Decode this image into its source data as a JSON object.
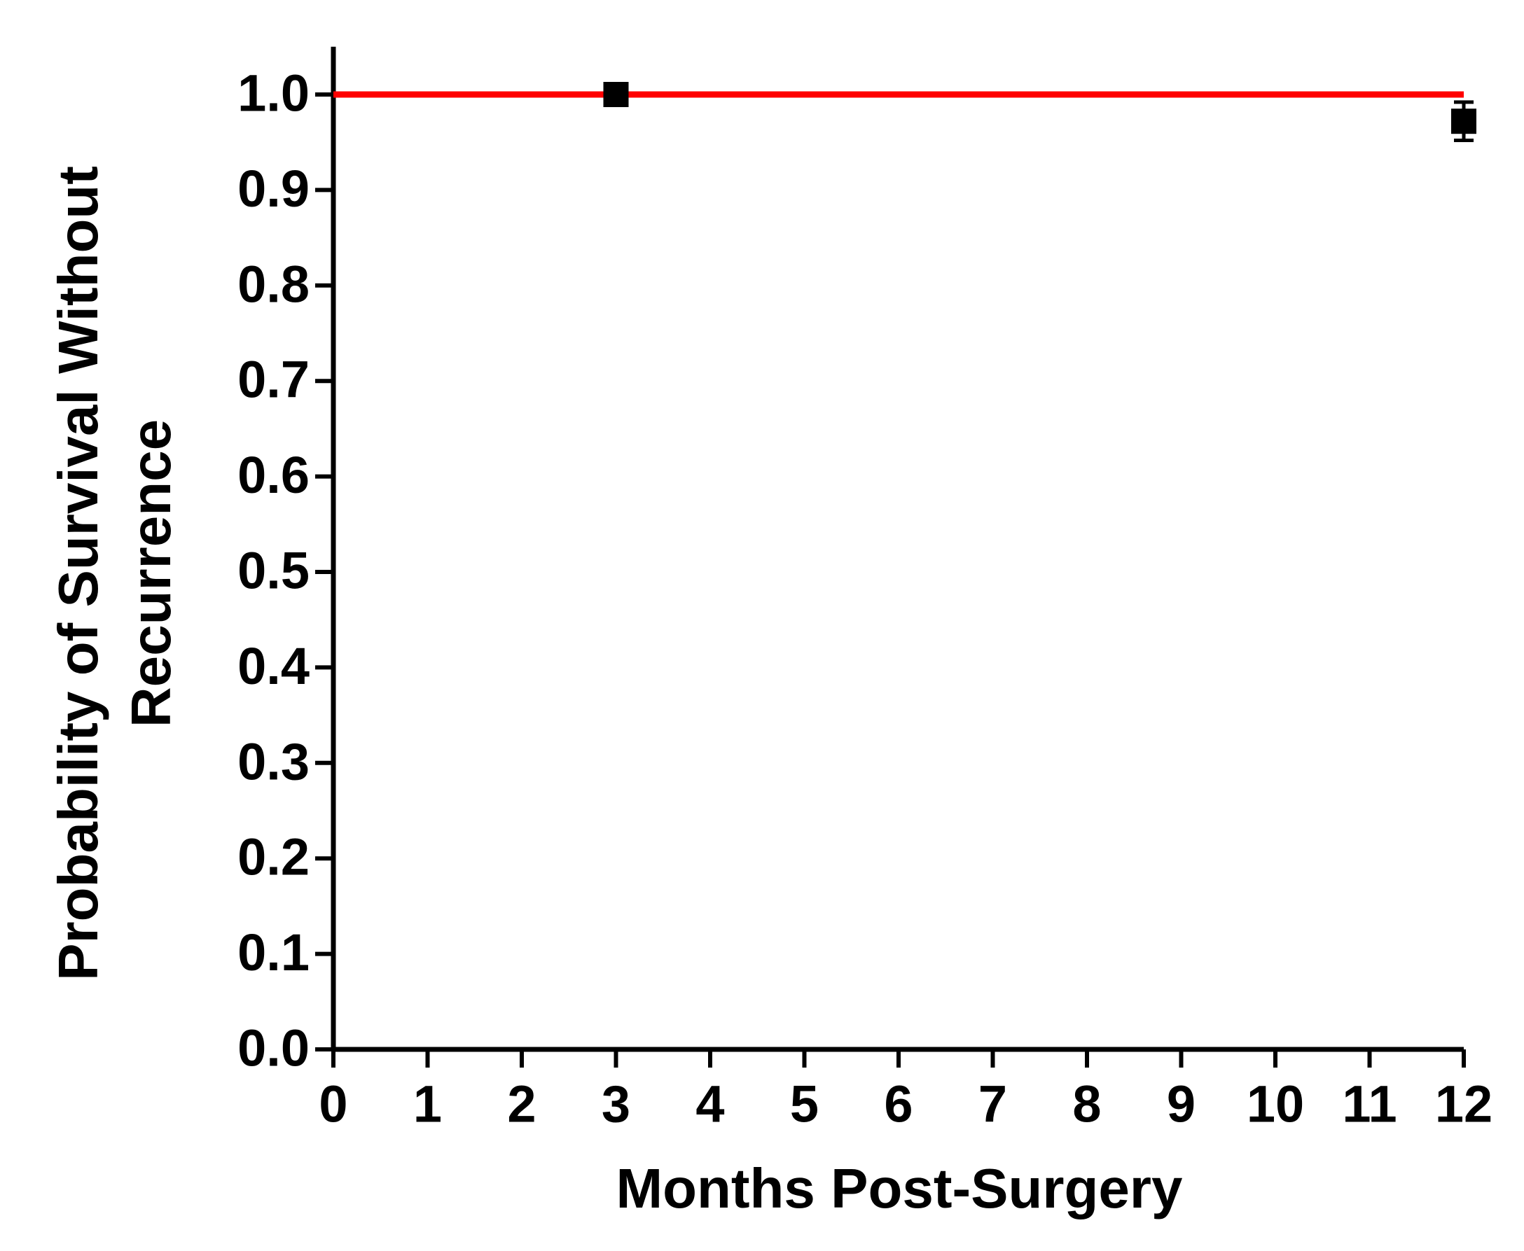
{
  "chart_data": {
    "type": "line",
    "xlabel": "Months Post-Surgery",
    "ylabel": [
      "Probability of Survival Without",
      "Recurrence"
    ],
    "xlim": [
      0,
      12
    ],
    "xticks": [
      0,
      1,
      2,
      3,
      4,
      5,
      6,
      7,
      8,
      9,
      10,
      11,
      12
    ],
    "ylim": [
      0,
      1.05
    ],
    "yticks": [
      {
        "value": 0,
        "label": "0.0"
      },
      0.1,
      0.2,
      0.3,
      0.4,
      0.5,
      0.6,
      0.7,
      0.8,
      0.9,
      {
        "value": 1,
        "label": "1.0"
      }
    ],
    "series": [
      {
        "style": "step",
        "color": "#ff0000",
        "x": [
          0,
          12
        ],
        "values": [
          1,
          1
        ]
      },
      {
        "style": "marker",
        "marker": "square",
        "color": "#000000",
        "x": [
          3,
          12
        ],
        "values": [
          1,
          0.972
        ],
        "errors": [
          0,
          0.02
        ]
      }
    ]
  }
}
